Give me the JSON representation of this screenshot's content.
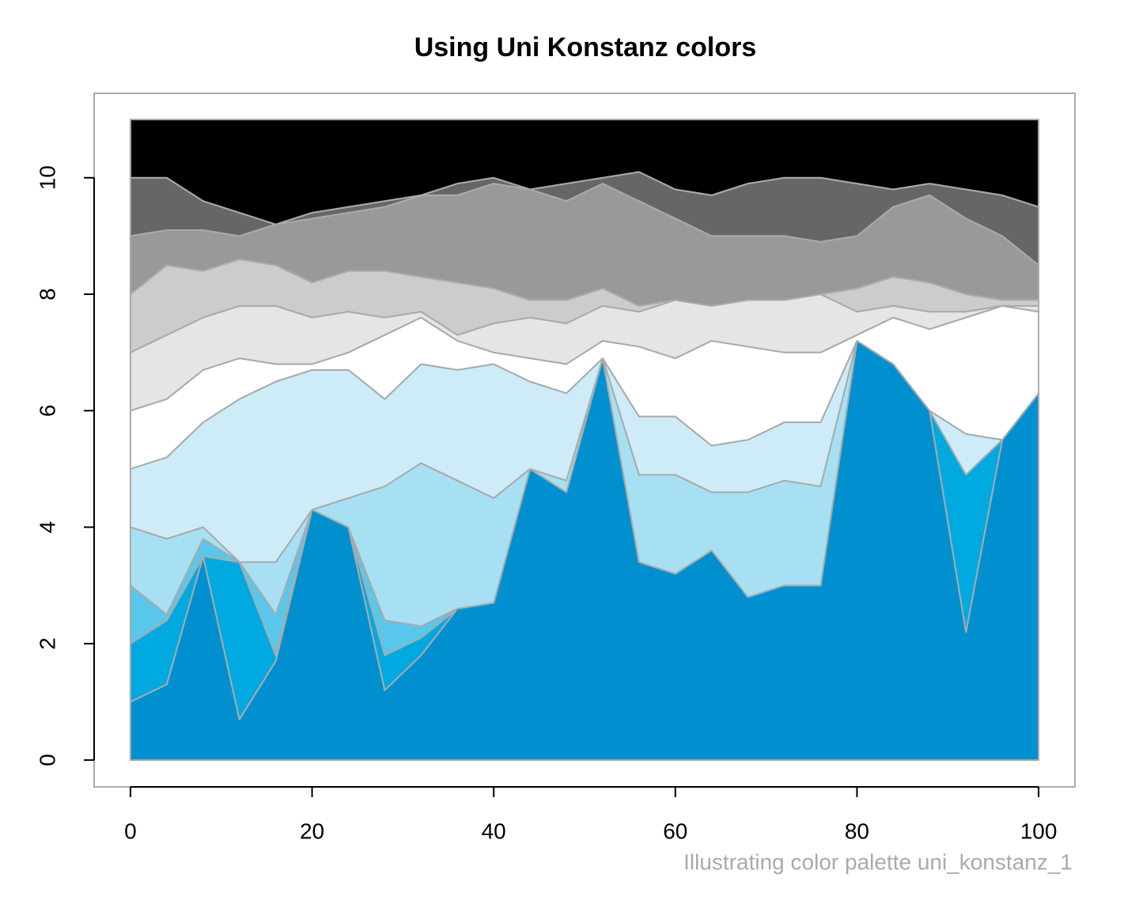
{
  "chart_data": {
    "type": "stacked_area",
    "title": "Using Uni Konstanz colors",
    "caption": "Illustrating color palette uni_konstanz_1",
    "x": [
      0,
      4,
      8,
      12,
      16,
      20,
      24,
      28,
      32,
      36,
      40,
      44,
      48,
      52,
      56,
      60,
      64,
      68,
      72,
      76,
      80,
      84,
      88,
      92,
      96,
      100
    ],
    "series": [
      {
        "color": "#0090d0",
        "values": [
          1,
          1.3,
          3.5,
          0.7,
          1.7,
          4.3,
          4.0,
          1.2,
          1.8,
          2.6,
          2.7,
          5.0,
          4.6,
          6.9,
          3.4,
          3.2,
          3.6,
          2.8,
          3.0,
          3.0,
          7.2,
          6.8,
          6.0,
          2.2,
          5.5,
          6.3
        ]
      },
      {
        "color": "#00a9e0",
        "values": [
          1,
          1.1,
          0,
          2.7,
          0.1,
          0,
          0,
          0.6,
          0.3,
          0,
          0,
          0,
          0,
          0,
          0,
          0,
          0,
          0,
          0,
          0,
          0,
          0,
          0,
          2.7,
          0,
          0
        ]
      },
      {
        "color": "#59c7eb",
        "values": [
          1,
          0.1,
          0.3,
          0,
          0.7,
          0,
          0,
          0.6,
          0.2,
          0,
          0,
          0,
          0,
          0,
          0,
          0,
          0,
          0,
          0,
          0,
          0,
          0,
          0,
          0,
          0,
          0
        ]
      },
      {
        "color": "#a8e0f3",
        "values": [
          1,
          1.3,
          0.2,
          0,
          0.9,
          0,
          0.5,
          2.3,
          2.8,
          2.2,
          1.8,
          0,
          0.2,
          0,
          1.5,
          1.7,
          1.0,
          1.8,
          1.8,
          1.7,
          0,
          0,
          0,
          0,
          0,
          0
        ]
      },
      {
        "color": "#cdecf7",
        "values": [
          1,
          1.4,
          1.8,
          2.8,
          3.1,
          2.4,
          2.2,
          1.5,
          1.7,
          1.9,
          2.3,
          1.5,
          1.5,
          0,
          1.0,
          1.0,
          0.8,
          0.9,
          1.0,
          1.1,
          0,
          0,
          0,
          0.7,
          0,
          0
        ]
      },
      {
        "color": "#ffffff",
        "values": [
          1,
          1.0,
          0.9,
          0.7,
          0.3,
          0.1,
          0.3,
          1.1,
          0.8,
          0.5,
          0.2,
          0.4,
          0.5,
          0.3,
          1.2,
          1.0,
          1.8,
          1.6,
          1.2,
          1.2,
          0.1,
          0.8,
          1.4,
          2.0,
          2.3,
          1.4
        ]
      },
      {
        "color": "#e5e5e5",
        "values": [
          1,
          1.1,
          0.9,
          0.9,
          1.0,
          0.8,
          0.7,
          0.3,
          0.1,
          0.1,
          0.5,
          0.7,
          0.7,
          0.6,
          0.6,
          1.0,
          0.6,
          0.8,
          0.9,
          1.0,
          0.4,
          0.2,
          0.3,
          0.1,
          0,
          0.1
        ]
      },
      {
        "color": "#cccccc",
        "values": [
          1,
          1.2,
          0.8,
          0.8,
          0.7,
          0.6,
          0.7,
          0.8,
          0.6,
          0.9,
          0.6,
          0.3,
          0.4,
          0.3,
          0.1,
          0,
          0,
          0,
          0,
          0,
          0.4,
          0.5,
          0.5,
          0.3,
          0.1,
          0.1
        ]
      },
      {
        "color": "#999999",
        "values": [
          1,
          0.6,
          0.7,
          0.4,
          0.7,
          1.1,
          1.0,
          1.1,
          1.4,
          1.5,
          1.8,
          1.9,
          1.7,
          1.8,
          1.8,
          1.4,
          1.2,
          1.1,
          1.1,
          0.9,
          0.9,
          1.2,
          1.5,
          1.3,
          1.1,
          0.6
        ]
      },
      {
        "color": "#666666",
        "values": [
          1,
          0.9,
          0.5,
          0.4,
          0,
          0.1,
          0.1,
          0.1,
          0,
          0.2,
          0.1,
          0,
          0.3,
          0.1,
          0.5,
          0.5,
          0.7,
          0.9,
          1.0,
          1.1,
          0.9,
          0.3,
          0.2,
          0.5,
          0.7,
          1.0
        ]
      },
      {
        "color": "#000000",
        "values": [
          1,
          1.0,
          1.4,
          1.6,
          1.8,
          1.6,
          1.5,
          1.4,
          1.3,
          1.1,
          1.0,
          1.2,
          1.1,
          1.0,
          0.9,
          1.2,
          1.3,
          1.1,
          1.0,
          1.0,
          1.1,
          1.2,
          1.1,
          1.2,
          1.3,
          1.5
        ]
      }
    ],
    "xlim": [
      -4,
      104
    ],
    "ylim": [
      -0.46,
      11.45
    ],
    "xticks": [
      0,
      20,
      40,
      60,
      80,
      100
    ],
    "yticks": [
      0,
      2,
      4,
      6,
      8,
      10
    ]
  }
}
